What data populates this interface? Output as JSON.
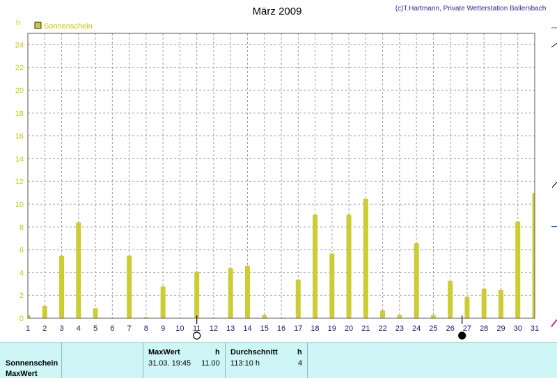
{
  "header": {
    "title": "März 2009",
    "credit": "(c)T.Hartmann, Private Wetterstation Ballersbach"
  },
  "chart_data": {
    "type": "bar",
    "ylabel": "h",
    "ylim": [
      0,
      25
    ],
    "yticks": [
      0,
      2,
      4,
      6,
      8,
      10,
      12,
      14,
      16,
      18,
      20,
      22,
      24
    ],
    "grid": true,
    "legend_position": "top-left",
    "categories": [
      "1",
      "2",
      "3",
      "4",
      "5",
      "6",
      "7",
      "8",
      "9",
      "10",
      "11",
      "12",
      "13",
      "14",
      "15",
      "16",
      "17",
      "18",
      "19",
      "20",
      "21",
      "22",
      "23",
      "24",
      "25",
      "26",
      "27",
      "28",
      "29",
      "30",
      "31"
    ],
    "series": [
      {
        "name": "Sonnenschein",
        "color": "#cccc33",
        "values": [
          0.3,
          1.1,
          5.5,
          8.4,
          0.9,
          0.0,
          5.5,
          0.1,
          2.8,
          0.0,
          4.1,
          0.0,
          4.4,
          4.6,
          0.3,
          0.0,
          3.4,
          9.1,
          5.7,
          9.1,
          10.5,
          0.7,
          0.3,
          6.6,
          0.3,
          3.3,
          1.9,
          2.6,
          2.5,
          8.5,
          11.0
        ]
      }
    ],
    "moon_phases": [
      {
        "day": 11,
        "phase": "full-moon"
      },
      {
        "day": 26.7,
        "phase": "new-moon"
      }
    ]
  },
  "stats": {
    "row_labels": [
      "Sonnenschein",
      "MaxWert"
    ],
    "max_header": "MaxWert",
    "max_unit": "h",
    "max_date": "31.03.  19:45",
    "max_value": "11.00",
    "avg_header": "Durchschnitt",
    "avg_unit": "h",
    "avg_value": "113:10 h",
    "avg_count": "4"
  },
  "colors": {
    "bar": "#cccc33",
    "axis_text": "#1a1a6a",
    "ylabel": "#c8c800",
    "panel": "#cef6f6"
  }
}
